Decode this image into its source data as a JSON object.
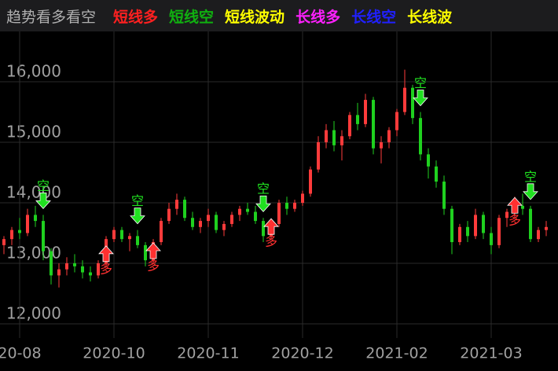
{
  "chart_data": {
    "type": "candlestick",
    "legend": [
      {
        "name": "趋势看多看空",
        "color": "#b0b0b0"
      },
      {
        "name": "短线多",
        "color": "#ff2020"
      },
      {
        "name": "短线空",
        "color": "#10b010"
      },
      {
        "name": "短线波动",
        "color": "#ffff00"
      },
      {
        "name": "长线多",
        "color": "#ff20ff"
      },
      {
        "name": "长线空",
        "color": "#2020ff"
      },
      {
        "name": "长线波",
        "color": "#ffff00"
      }
    ],
    "up_color": "#ff3b3b",
    "down_color": "#1fd11f",
    "categories": [
      null,
      null,
      "20-08",
      null,
      null,
      null,
      null,
      null,
      null,
      null,
      null,
      null,
      null,
      null,
      "2020-10",
      null,
      null,
      null,
      null,
      null,
      null,
      null,
      null,
      null,
      null,
      null,
      "2020-11",
      null,
      null,
      null,
      null,
      null,
      null,
      null,
      null,
      null,
      null,
      null,
      "2020-12",
      null,
      null,
      null,
      null,
      null,
      null,
      null,
      null,
      null,
      null,
      null,
      "2021-02",
      null,
      null,
      null,
      null,
      null,
      null,
      null,
      null,
      null,
      null,
      null,
      "2021-03",
      null,
      null,
      null,
      null,
      null,
      null,
      null
    ],
    "ohlc": [
      [
        13300,
        13450,
        13150,
        13400
      ],
      [
        13400,
        13600,
        13300,
        13550
      ],
      [
        13550,
        13750,
        13400,
        13500
      ],
      [
        13500,
        13900,
        13450,
        13800
      ],
      [
        13800,
        13950,
        13600,
        13700
      ],
      [
        13700,
        13800,
        13050,
        13200
      ],
      [
        13200,
        13250,
        12650,
        12800
      ],
      [
        12800,
        13000,
        12600,
        12900
      ],
      [
        12900,
        13100,
        12800,
        13000
      ],
      [
        13000,
        13150,
        12850,
        12950
      ],
      [
        12950,
        13050,
        12750,
        12850
      ],
      [
        12850,
        12950,
        12700,
        12800
      ],
      [
        12800,
        13050,
        12750,
        13000
      ],
      [
        13000,
        13450,
        12950,
        13400
      ],
      [
        13400,
        13600,
        13350,
        13550
      ],
      [
        13550,
        13600,
        13350,
        13400
      ],
      [
        13400,
        13500,
        13200,
        13450
      ],
      [
        13450,
        13550,
        13250,
        13300
      ],
      [
        13300,
        13350,
        12950,
        13050
      ],
      [
        13050,
        13400,
        13000,
        13350
      ],
      [
        13350,
        13750,
        13300,
        13700
      ],
      [
        13700,
        14000,
        13650,
        13900
      ],
      [
        13900,
        14150,
        13800,
        14050
      ],
      [
        14050,
        14100,
        13700,
        13750
      ],
      [
        13750,
        13850,
        13550,
        13600
      ],
      [
        13600,
        13750,
        13500,
        13700
      ],
      [
        13700,
        13900,
        13600,
        13800
      ],
      [
        13800,
        13850,
        13500,
        13550
      ],
      [
        13550,
        13700,
        13450,
        13650
      ],
      [
        13650,
        13850,
        13600,
        13800
      ],
      [
        13800,
        13950,
        13700,
        13900
      ],
      [
        13900,
        14000,
        13800,
        13850
      ],
      [
        13850,
        13950,
        13650,
        13700
      ],
      [
        13700,
        13750,
        13350,
        13450
      ],
      [
        13450,
        13700,
        13400,
        13650
      ],
      [
        13650,
        14050,
        13600,
        14000
      ],
      [
        14000,
        14100,
        13800,
        13900
      ],
      [
        13900,
        14050,
        13850,
        14000
      ],
      [
        14000,
        14200,
        13950,
        14150
      ],
      [
        14150,
        14600,
        14100,
        14550
      ],
      [
        14550,
        15100,
        14500,
        15000
      ],
      [
        15000,
        15300,
        14900,
        15200
      ],
      [
        15200,
        15350,
        14850,
        14950
      ],
      [
        14950,
        15200,
        14700,
        15100
      ],
      [
        15100,
        15500,
        15050,
        15450
      ],
      [
        15450,
        15650,
        15200,
        15300
      ],
      [
        15300,
        15800,
        15250,
        15700
      ],
      [
        15700,
        15750,
        14800,
        14900
      ],
      [
        14900,
        15100,
        14650,
        15000
      ],
      [
        15000,
        15250,
        14900,
        15200
      ],
      [
        15200,
        15550,
        15100,
        15500
      ],
      [
        15500,
        16200,
        15450,
        15900
      ],
      [
        15900,
        15950,
        15300,
        15400
      ],
      [
        15400,
        15500,
        14700,
        14800
      ],
      [
        14800,
        14900,
        14400,
        14600
      ],
      [
        14600,
        14700,
        14250,
        14350
      ],
      [
        14350,
        14450,
        13800,
        13900
      ],
      [
        13900,
        13950,
        13150,
        13350
      ],
      [
        13350,
        13650,
        13300,
        13600
      ],
      [
        13600,
        13700,
        13350,
        13450
      ],
      [
        13450,
        13900,
        13400,
        13800
      ],
      [
        13800,
        13850,
        13400,
        13500
      ],
      [
        13500,
        13600,
        13150,
        13300
      ],
      [
        13300,
        13800,
        13250,
        13750
      ],
      [
        13750,
        13900,
        13600,
        13850
      ],
      [
        13850,
        14100,
        13750,
        13950
      ],
      [
        13950,
        14150,
        13800,
        13900
      ],
      [
        13900,
        13950,
        13350,
        13400
      ],
      [
        13400,
        13600,
        13350,
        13550
      ],
      [
        13550,
        13700,
        13450,
        13600
      ]
    ],
    "signals": [
      {
        "index": 5,
        "label": "空",
        "direction": "down",
        "color": "#20e020"
      },
      {
        "index": 17,
        "label": "空",
        "direction": "down",
        "color": "#20e020"
      },
      {
        "index": 33,
        "label": "空",
        "direction": "down",
        "color": "#20e020"
      },
      {
        "index": 53,
        "label": "空",
        "direction": "down",
        "color": "#20e020"
      },
      {
        "index": 67,
        "label": "空",
        "direction": "down",
        "color": "#20e020"
      },
      {
        "index": 13,
        "label": "多",
        "direction": "up",
        "color": "#ff3030"
      },
      {
        "index": 19,
        "label": "多",
        "direction": "up",
        "color": "#ff3030"
      },
      {
        "index": 34,
        "label": "多",
        "direction": "up",
        "color": "#ff3030"
      },
      {
        "index": 65,
        "label": "多",
        "direction": "up",
        "color": "#ff3030"
      }
    ],
    "ylim": [
      11766,
      16831
    ],
    "yticks": [
      {
        "value": 12000,
        "label": "12,000"
      },
      {
        "value": 13000,
        "label": "13,000"
      },
      {
        "value": 14000,
        "label": "14,000"
      },
      {
        "value": 15000,
        "label": "15,000"
      },
      {
        "value": 16000,
        "label": "16,000"
      }
    ],
    "grid": true
  }
}
